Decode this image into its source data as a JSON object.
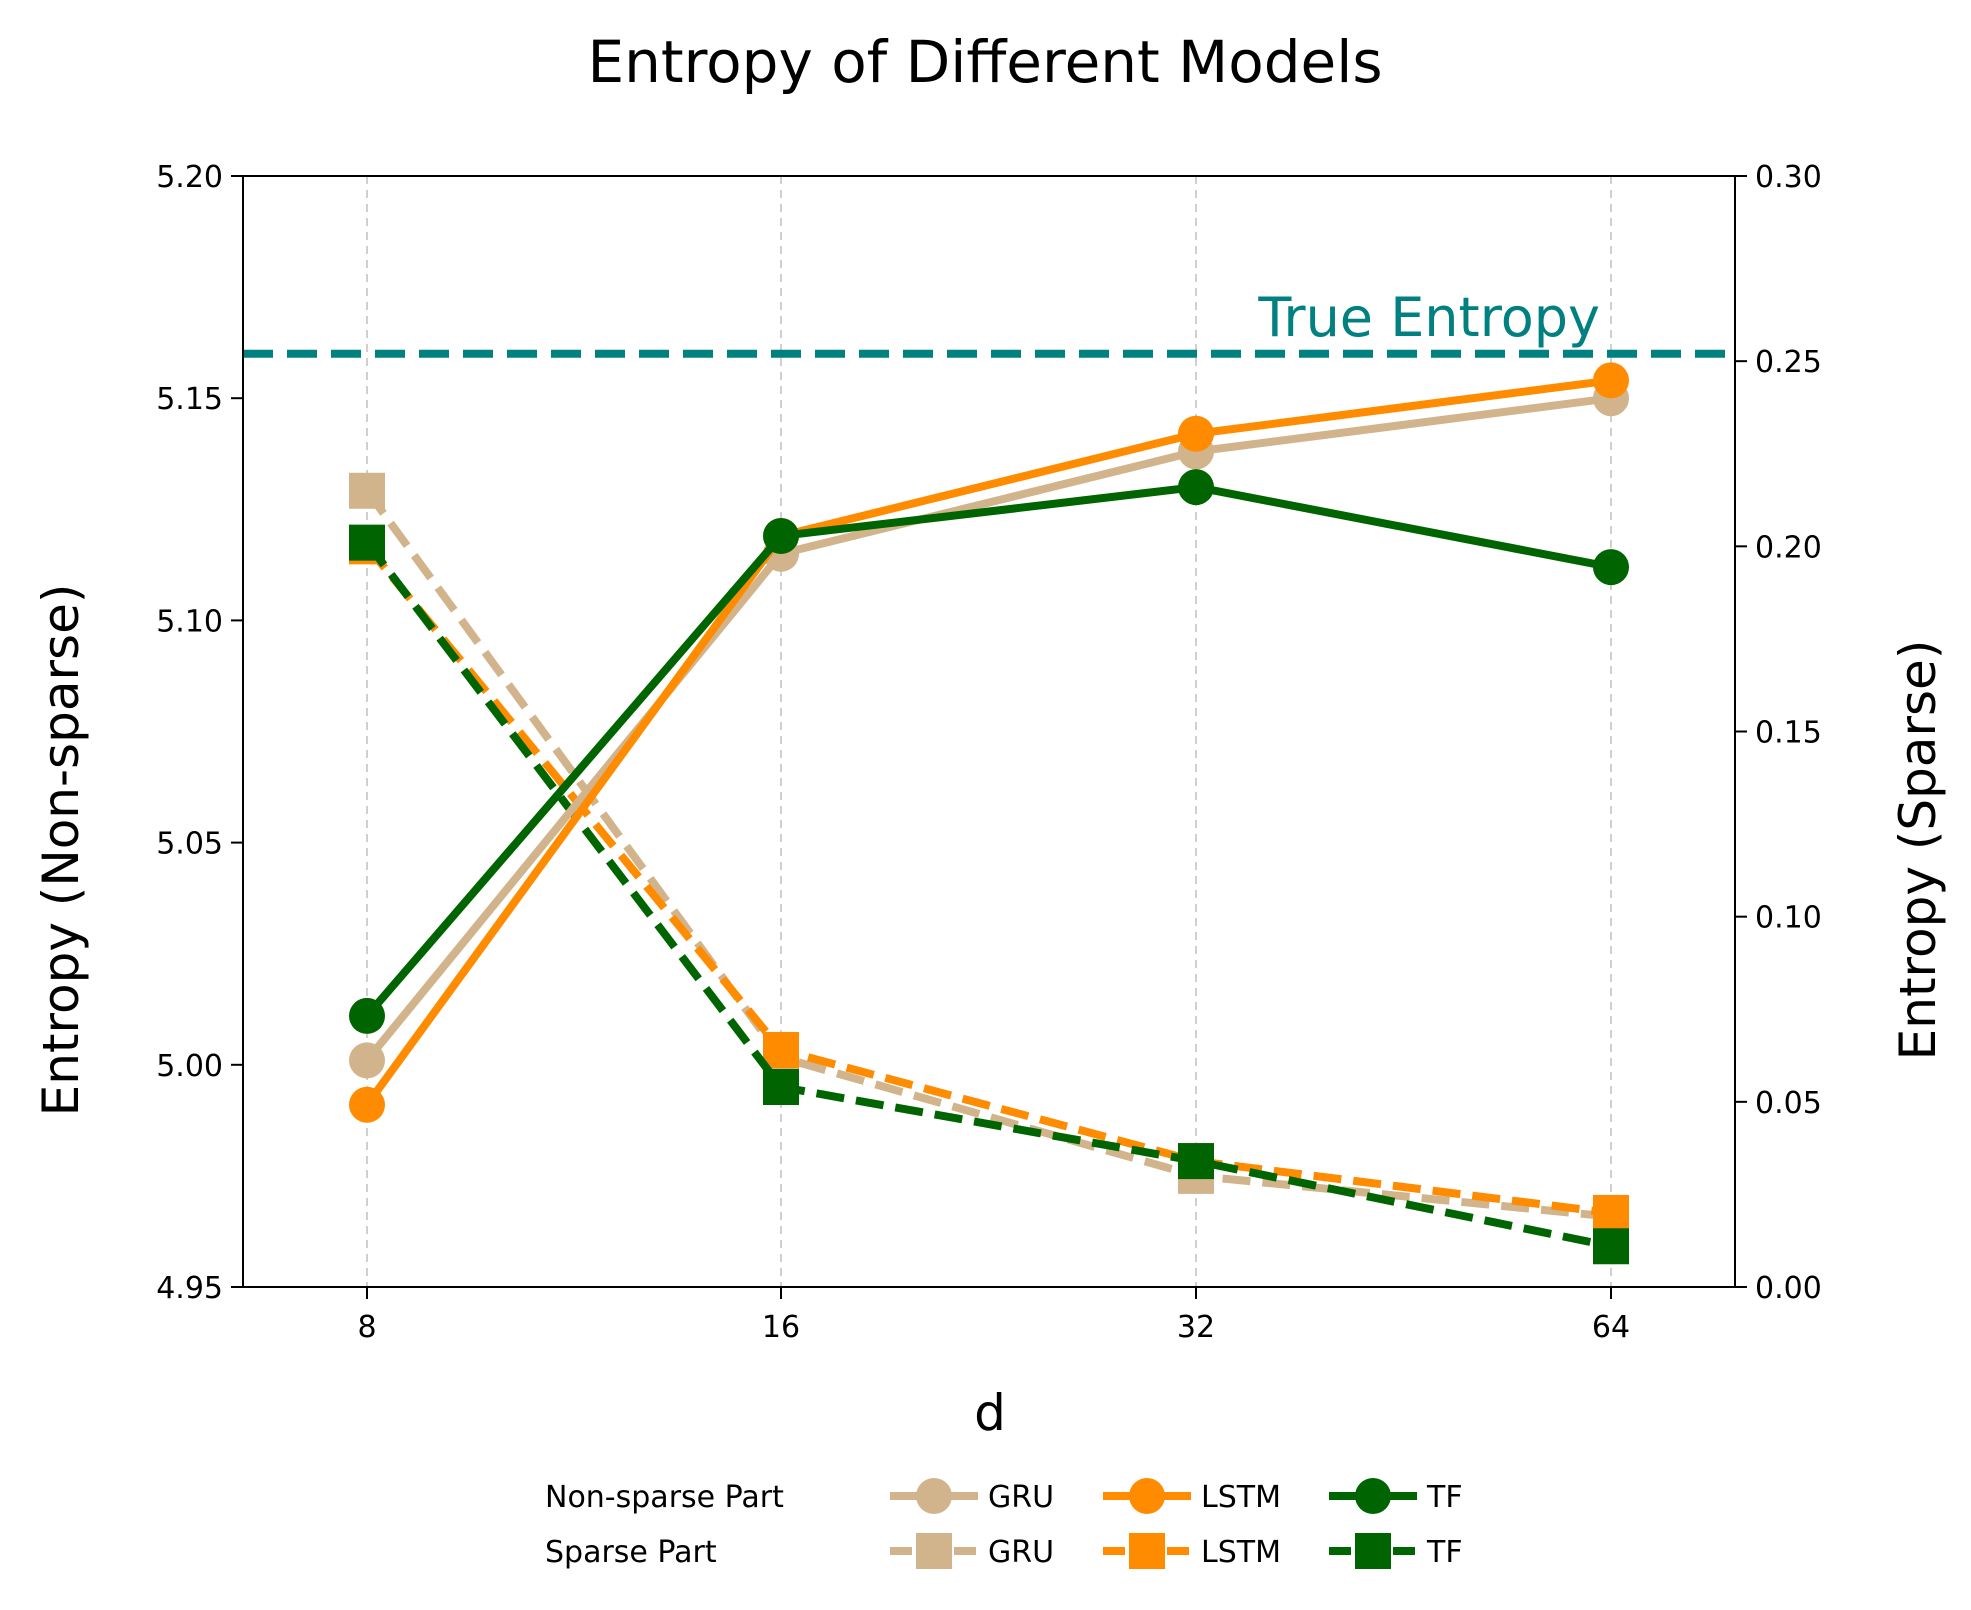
{
  "chart_data": {
    "type": "line",
    "title": "Entropy of Different Models",
    "xlabel": "d",
    "ylabel_left": "Entropy (Non-sparse)",
    "ylabel_right": "Entropy (Sparse)",
    "categories": [
      "8",
      "16",
      "32",
      "64"
    ],
    "ylim_left": [
      4.95,
      5.2
    ],
    "yticks_left": [
      "4.95",
      "5.00",
      "5.05",
      "5.10",
      "5.15",
      "5.20"
    ],
    "ylim_right": [
      0.0,
      0.3
    ],
    "yticks_right": [
      "0.00",
      "0.05",
      "0.10",
      "0.15",
      "0.20",
      "0.25",
      "0.30"
    ],
    "grid": "vertical dashed",
    "true_entropy": {
      "label": "True Entropy",
      "value": 5.16,
      "color": "#008080"
    },
    "series": [
      {
        "name": "GRU",
        "part": "Non-sparse Part",
        "axis": "left",
        "marker": "circle",
        "linestyle": "solid",
        "color": "#D2B48C",
        "values": [
          5.001,
          5.115,
          5.138,
          5.15
        ]
      },
      {
        "name": "LSTM",
        "part": "Non-sparse Part",
        "axis": "left",
        "marker": "circle",
        "linestyle": "solid",
        "color": "#FF8C00",
        "values": [
          4.991,
          5.119,
          5.142,
          5.154
        ]
      },
      {
        "name": "TF",
        "part": "Non-sparse Part",
        "axis": "left",
        "marker": "circle",
        "linestyle": "solid",
        "color": "#006400",
        "values": [
          5.011,
          5.119,
          5.13,
          5.112
        ]
      },
      {
        "name": "GRU",
        "part": "Sparse Part",
        "axis": "right",
        "marker": "square",
        "linestyle": "dashed",
        "color": "#D2B48C",
        "values": [
          0.215,
          0.062,
          0.03,
          0.019
        ]
      },
      {
        "name": "LSTM",
        "part": "Sparse Part",
        "axis": "right",
        "marker": "square",
        "linestyle": "dashed",
        "color": "#FF8C00",
        "values": [
          0.2,
          0.064,
          0.034,
          0.02
        ]
      },
      {
        "name": "TF",
        "part": "Sparse Part",
        "axis": "right",
        "marker": "square",
        "linestyle": "dashed",
        "color": "#006400",
        "values": [
          0.201,
          0.054,
          0.034,
          0.011
        ]
      }
    ],
    "legend": {
      "placement": "bottom-center",
      "row_labels": [
        "Non-sparse Part",
        "Sparse Part"
      ],
      "entries": [
        "GRU",
        "LSTM",
        "TF"
      ]
    }
  }
}
